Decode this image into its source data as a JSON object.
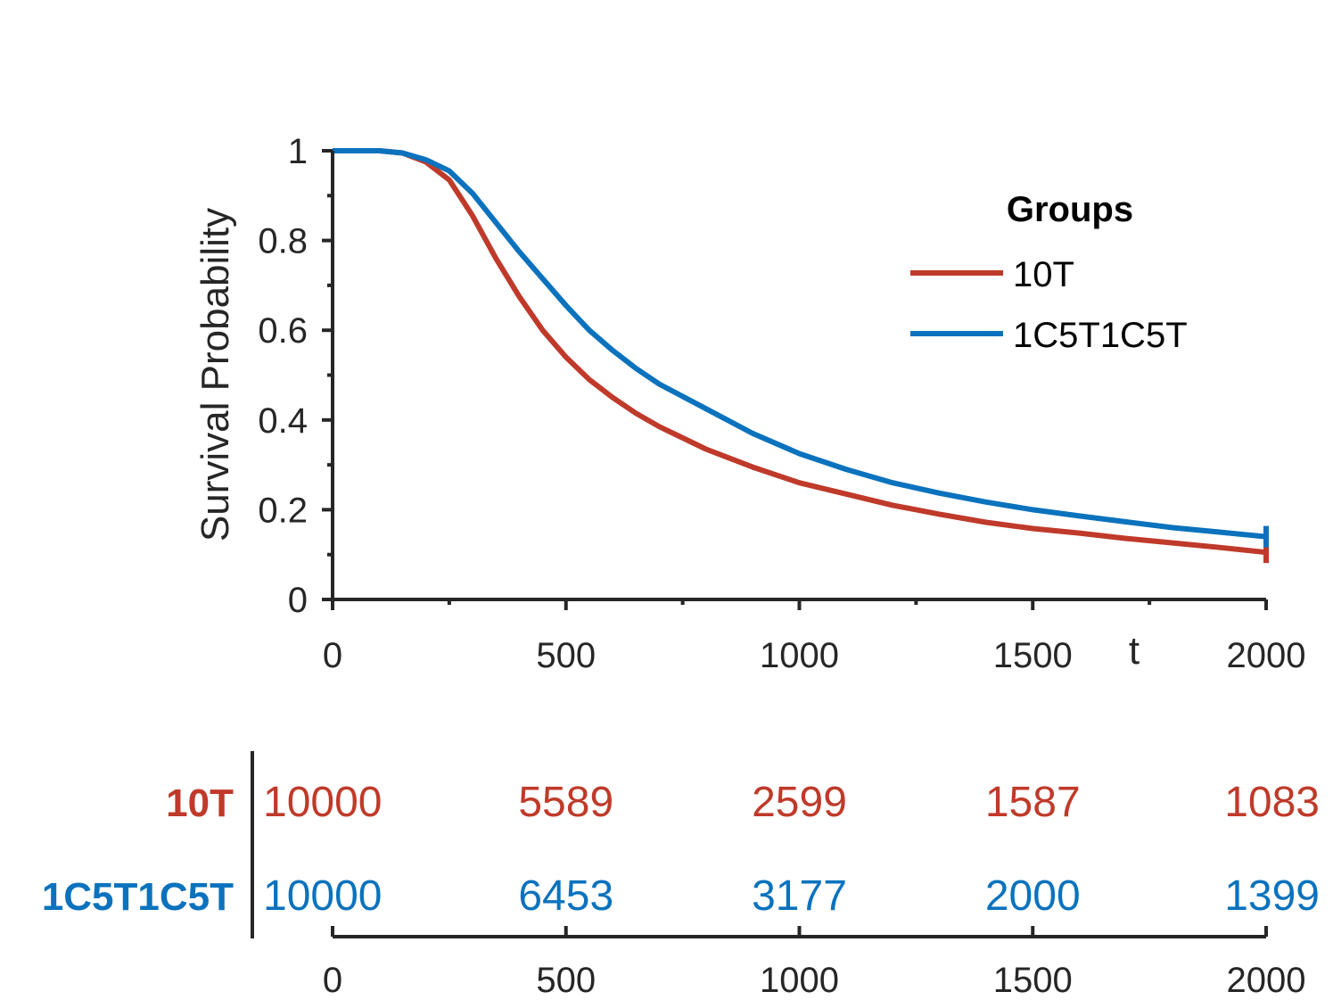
{
  "chart_data": [
    {
      "type": "line",
      "xlabel": "t",
      "ylabel": "Survival Probability",
      "xlim": [
        0,
        2000
      ],
      "ylim": [
        0,
        1
      ],
      "xticks": [
        0,
        500,
        1000,
        1500,
        2000
      ],
      "xtick_labels": [
        "0",
        "500",
        "1000",
        "1500",
        "2000"
      ],
      "yticks": [
        0,
        0.2,
        0.4,
        0.6,
        0.8,
        1
      ],
      "ytick_labels": [
        "0",
        "0.2",
        "0.4",
        "0.6",
        "0.8",
        "1"
      ],
      "grid": false,
      "legend": {
        "title": "Groups",
        "placement": "top-right"
      },
      "series": [
        {
          "name": "10T",
          "color": "#BF3A2A",
          "x": [
            0,
            100,
            150,
            200,
            250,
            300,
            350,
            400,
            450,
            500,
            550,
            600,
            650,
            700,
            800,
            900,
            1000,
            1100,
            1200,
            1300,
            1400,
            1500,
            1600,
            1700,
            1800,
            1900,
            2000
          ],
          "y": [
            1.0,
            1.0,
            0.995,
            0.975,
            0.935,
            0.855,
            0.76,
            0.675,
            0.6,
            0.54,
            0.49,
            0.45,
            0.415,
            0.385,
            0.335,
            0.295,
            0.26,
            0.235,
            0.21,
            0.19,
            0.172,
            0.158,
            0.148,
            0.136,
            0.126,
            0.116,
            0.105
          ]
        },
        {
          "name": "1C5T1C5T",
          "color": "#0B72BD",
          "x": [
            0,
            100,
            150,
            200,
            250,
            300,
            350,
            400,
            450,
            500,
            550,
            600,
            650,
            700,
            800,
            900,
            1000,
            1100,
            1200,
            1300,
            1400,
            1500,
            1600,
            1700,
            1800,
            1900,
            2000
          ],
          "y": [
            1.0,
            1.0,
            0.995,
            0.98,
            0.955,
            0.905,
            0.84,
            0.775,
            0.715,
            0.655,
            0.6,
            0.555,
            0.515,
            0.48,
            0.425,
            0.37,
            0.325,
            0.29,
            0.26,
            0.237,
            0.217,
            0.2,
            0.186,
            0.173,
            0.16,
            0.15,
            0.14
          ]
        }
      ]
    },
    {
      "type": "table",
      "title": "",
      "xlim": [
        0,
        2000
      ],
      "xticks": [
        0,
        500,
        1000,
        1500,
        2000
      ],
      "xtick_labels": [
        "0",
        "500",
        "1000",
        "1500",
        "2000"
      ],
      "rows": [
        {
          "name": "10T",
          "color": "#BF3A2A",
          "values": [
            "10000",
            "5589",
            "2599",
            "1587",
            "1083"
          ]
        },
        {
          "name": "1C5T1C5T",
          "color": "#0B72BD",
          "values": [
            "10000",
            "6453",
            "3177",
            "2000",
            "1399"
          ]
        }
      ]
    }
  ]
}
